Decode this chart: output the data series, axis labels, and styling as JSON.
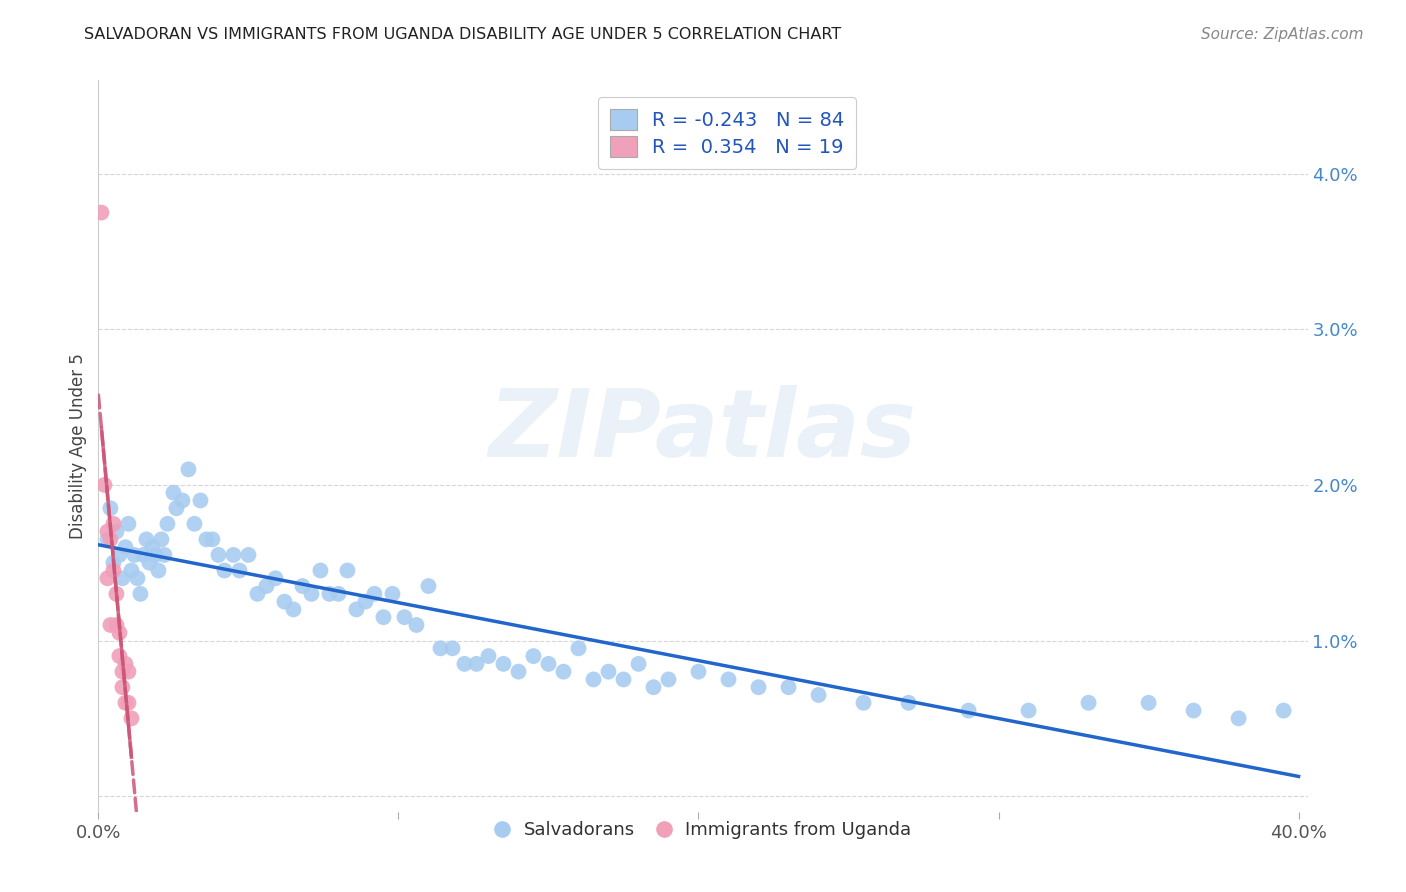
{
  "title": "SALVADORAN VS IMMIGRANTS FROM UGANDA DISABILITY AGE UNDER 5 CORRELATION CHART",
  "source": "Source: ZipAtlas.com",
  "ylabel": "Disability Age Under 5",
  "watermark": "ZIPatlas",
  "xlim": [
    0.0,
    0.403
  ],
  "ylim": [
    -0.001,
    0.046
  ],
  "xtick_positions": [
    0.0,
    0.1,
    0.2,
    0.3,
    0.4
  ],
  "xtick_labels": [
    "0.0%",
    "",
    "",
    "",
    "40.0%"
  ],
  "ytick_positions": [
    0.0,
    0.01,
    0.02,
    0.03,
    0.04
  ],
  "ytick_labels_right": [
    "",
    "1.0%",
    "2.0%",
    "3.0%",
    "4.0%"
  ],
  "blue_color": "#a8ccf0",
  "pink_color": "#f0a0b8",
  "blue_line_color": "#2266cc",
  "pink_line_color": "#cc5577",
  "salvadorans_label": "Salvadorans",
  "uganda_label": "Immigrants from Uganda",
  "salvadorans_x": [
    0.003,
    0.004,
    0.005,
    0.006,
    0.007,
    0.008,
    0.009,
    0.01,
    0.011,
    0.012,
    0.013,
    0.014,
    0.015,
    0.016,
    0.017,
    0.018,
    0.019,
    0.02,
    0.021,
    0.022,
    0.023,
    0.025,
    0.026,
    0.028,
    0.03,
    0.032,
    0.034,
    0.036,
    0.038,
    0.04,
    0.042,
    0.045,
    0.047,
    0.05,
    0.053,
    0.056,
    0.059,
    0.062,
    0.065,
    0.068,
    0.071,
    0.074,
    0.077,
    0.08,
    0.083,
    0.086,
    0.089,
    0.092,
    0.095,
    0.098,
    0.102,
    0.106,
    0.11,
    0.114,
    0.118,
    0.122,
    0.126,
    0.13,
    0.135,
    0.14,
    0.145,
    0.15,
    0.155,
    0.16,
    0.165,
    0.17,
    0.175,
    0.18,
    0.185,
    0.19,
    0.2,
    0.21,
    0.22,
    0.23,
    0.24,
    0.255,
    0.27,
    0.29,
    0.31,
    0.33,
    0.35,
    0.365,
    0.38,
    0.395
  ],
  "salvadorans_y": [
    0.0165,
    0.0185,
    0.015,
    0.017,
    0.0155,
    0.014,
    0.016,
    0.0175,
    0.0145,
    0.0155,
    0.014,
    0.013,
    0.0155,
    0.0165,
    0.015,
    0.016,
    0.0155,
    0.0145,
    0.0165,
    0.0155,
    0.0175,
    0.0195,
    0.0185,
    0.019,
    0.021,
    0.0175,
    0.019,
    0.0165,
    0.0165,
    0.0155,
    0.0145,
    0.0155,
    0.0145,
    0.0155,
    0.013,
    0.0135,
    0.014,
    0.0125,
    0.012,
    0.0135,
    0.013,
    0.0145,
    0.013,
    0.013,
    0.0145,
    0.012,
    0.0125,
    0.013,
    0.0115,
    0.013,
    0.0115,
    0.011,
    0.0135,
    0.0095,
    0.0095,
    0.0085,
    0.0085,
    0.009,
    0.0085,
    0.008,
    0.009,
    0.0085,
    0.008,
    0.0095,
    0.0075,
    0.008,
    0.0075,
    0.0085,
    0.007,
    0.0075,
    0.008,
    0.0075,
    0.007,
    0.007,
    0.0065,
    0.006,
    0.006,
    0.0055,
    0.0055,
    0.006,
    0.006,
    0.0055,
    0.005,
    0.0055
  ],
  "uganda_x": [
    0.001,
    0.002,
    0.003,
    0.003,
    0.004,
    0.004,
    0.005,
    0.005,
    0.006,
    0.006,
    0.007,
    0.007,
    0.008,
    0.008,
    0.009,
    0.009,
    0.01,
    0.01,
    0.011
  ],
  "uganda_y": [
    0.0375,
    0.02,
    0.017,
    0.014,
    0.0165,
    0.011,
    0.0175,
    0.0145,
    0.013,
    0.011,
    0.0105,
    0.009,
    0.008,
    0.007,
    0.0085,
    0.006,
    0.008,
    0.006,
    0.005
  ]
}
